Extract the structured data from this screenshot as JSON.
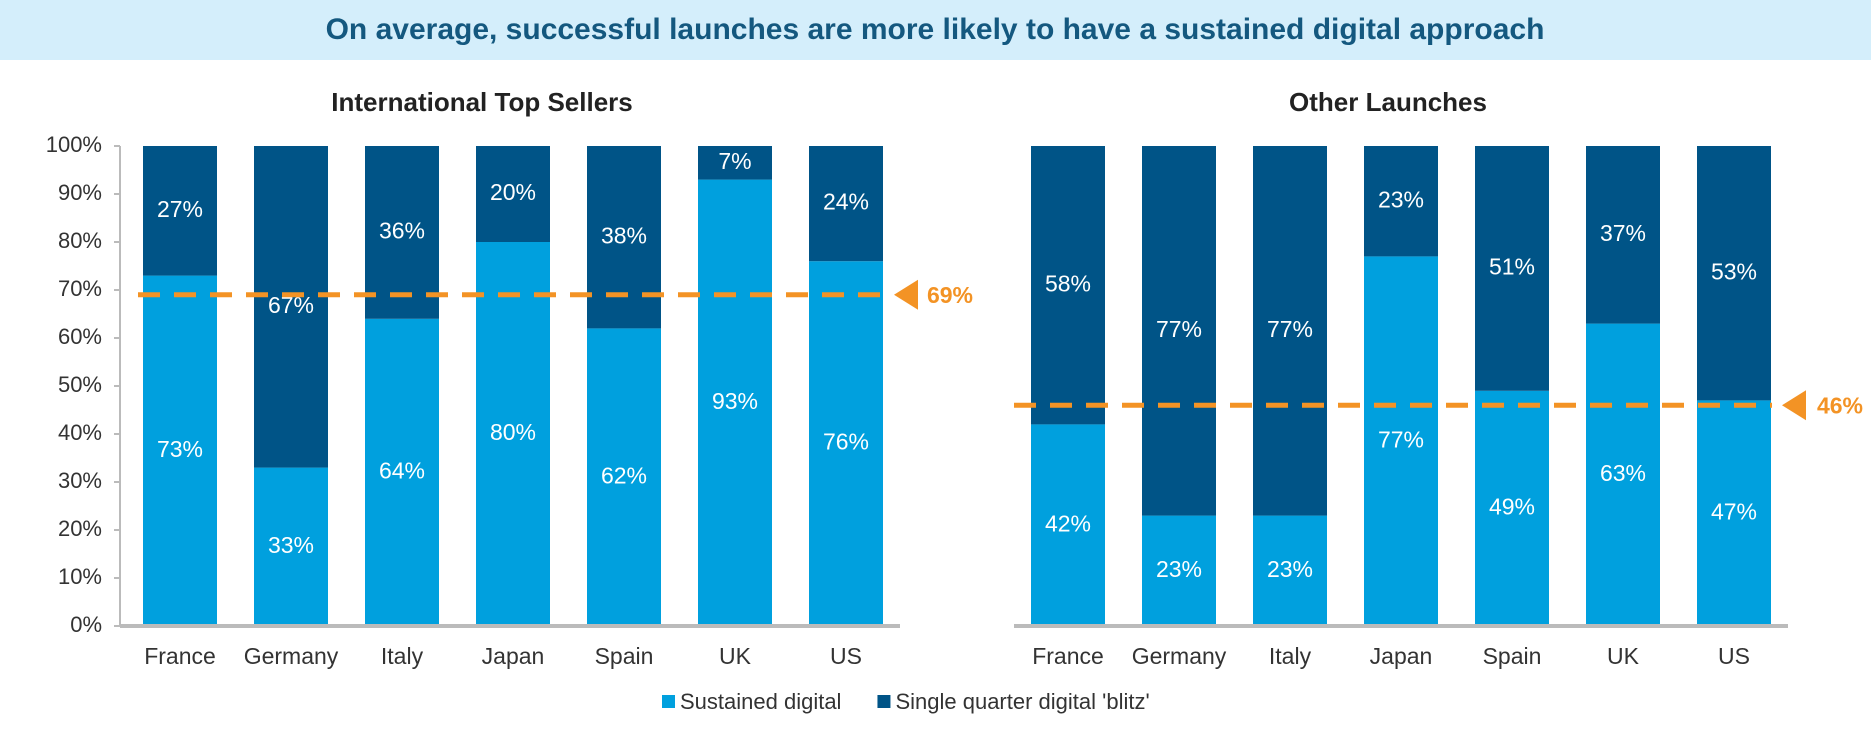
{
  "page_title": "On average, successful launches are more likely to have a sustained digital approach",
  "chart_data": [
    {
      "type": "bar",
      "stacked": true,
      "title": "International Top Sellers",
      "categories": [
        "France",
        "Germany",
        "Italy",
        "Japan",
        "Spain",
        "UK",
        "US"
      ],
      "series": [
        {
          "name": "Sustained digital",
          "color": "#00a0de",
          "values": [
            73,
            33,
            64,
            80,
            62,
            93,
            76
          ],
          "value_labels": [
            "73%",
            "33%",
            "64%",
            "80%",
            "62%",
            "93%",
            "76%"
          ]
        },
        {
          "name": "Single quarter digital 'blitz'",
          "color": "#005487",
          "values": [
            27,
            67,
            36,
            20,
            38,
            7,
            24
          ],
          "value_labels": [
            "27%",
            "67%",
            "36%",
            "20%",
            "38%",
            "7%",
            "24%"
          ]
        }
      ],
      "ylim": [
        0,
        100
      ],
      "yticks": [
        {
          "value": 0,
          "label": "0%"
        },
        {
          "value": 10,
          "label": "10%"
        },
        {
          "value": 20,
          "label": "20%"
        },
        {
          "value": 30,
          "label": "30%"
        },
        {
          "value": 40,
          "label": "40%"
        },
        {
          "value": 50,
          "label": "50%"
        },
        {
          "value": 60,
          "label": "60%"
        },
        {
          "value": 70,
          "label": "70%"
        },
        {
          "value": 80,
          "label": "80%"
        },
        {
          "value": 90,
          "label": "90%"
        },
        {
          "value": 100,
          "label": "100%"
        }
      ],
      "reference": {
        "value": 69,
        "label": "69%",
        "color": "#f39325"
      }
    },
    {
      "type": "bar",
      "stacked": true,
      "title": "Other Launches",
      "categories": [
        "France",
        "Germany",
        "Italy",
        "Japan",
        "Spain",
        "UK",
        "US"
      ],
      "series": [
        {
          "color": "#00a0de",
          "values": [
            42,
            23,
            23,
            77,
            49,
            63,
            47
          ],
          "value_labels": [
            "42%",
            "23%",
            "23%",
            "77%",
            "49%",
            "63%",
            "47%"
          ]
        },
        {
          "color": "#005487",
          "values": [
            58,
            77,
            77,
            23,
            51,
            37,
            53
          ],
          "value_labels": [
            "58%",
            "77%",
            "77%",
            "23%",
            "51%",
            "37%",
            "53%"
          ]
        }
      ],
      "ylim": [
        0,
        100
      ],
      "reference": {
        "value": 46,
        "label": "46%",
        "color": "#f39325"
      }
    }
  ]
}
